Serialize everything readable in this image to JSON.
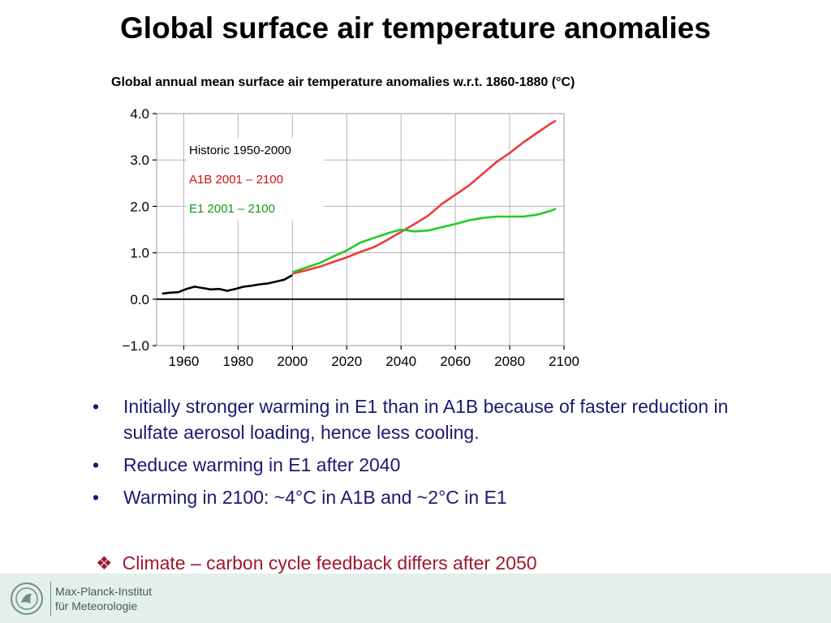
{
  "slide": {
    "title": "Global surface air temperature anomalies"
  },
  "chart_data": {
    "type": "line",
    "title": "Global annual mean surface air temperature anomalies w.r.t. 1860-1880 (°C)",
    "xlabel": "",
    "ylabel": "",
    "xlim": [
      1950,
      2100
    ],
    "ylim": [
      -1.0,
      4.0
    ],
    "x_ticks": [
      1960,
      1980,
      2000,
      2020,
      2040,
      2060,
      2080,
      2100
    ],
    "y_ticks": [
      -1.0,
      0.0,
      1.0,
      2.0,
      3.0,
      4.0
    ],
    "y_tick_labels": [
      "−1.0",
      "0.0",
      "1.0",
      "2.0",
      "3.0",
      "4.0"
    ],
    "grid": true,
    "legend_position": "top-left",
    "series": [
      {
        "name": "Historic 1950-2000",
        "color": "#000000",
        "x": [
          1952,
          1955,
          1958,
          1961,
          1964,
          1967,
          1970,
          1973,
          1976,
          1979,
          1982,
          1985,
          1988,
          1991,
          1994,
          1997,
          2000
        ],
        "y": [
          0.12,
          0.14,
          0.15,
          0.22,
          0.27,
          0.24,
          0.21,
          0.22,
          0.18,
          0.22,
          0.27,
          0.29,
          0.32,
          0.34,
          0.38,
          0.42,
          0.52
        ]
      },
      {
        "name": "A1B 2001 – 2100",
        "color": "#ef3a3a",
        "x": [
          2000,
          2005,
          2010,
          2015,
          2020,
          2025,
          2030,
          2035,
          2040,
          2045,
          2050,
          2055,
          2060,
          2065,
          2070,
          2075,
          2080,
          2085,
          2090,
          2095,
          2097
        ],
        "y": [
          0.55,
          0.62,
          0.7,
          0.8,
          0.9,
          1.02,
          1.12,
          1.28,
          1.45,
          1.62,
          1.8,
          2.05,
          2.25,
          2.45,
          2.7,
          2.95,
          3.15,
          3.38,
          3.58,
          3.78,
          3.85
        ]
      },
      {
        "name": "E1   2001 – 2100",
        "color": "#22cc22",
        "x": [
          2000,
          2005,
          2010,
          2015,
          2020,
          2025,
          2030,
          2035,
          2040,
          2045,
          2050,
          2055,
          2060,
          2065,
          2070,
          2075,
          2080,
          2085,
          2090,
          2095,
          2097
        ],
        "y": [
          0.58,
          0.68,
          0.78,
          0.92,
          1.05,
          1.22,
          1.32,
          1.42,
          1.5,
          1.46,
          1.48,
          1.55,
          1.62,
          1.7,
          1.75,
          1.78,
          1.78,
          1.78,
          1.82,
          1.9,
          1.95
        ]
      }
    ]
  },
  "bullets": [
    "Initially stronger warming in E1 than in A1B because of faster reduction in sulfate aerosol loading, hence less cooling.",
    "Reduce warming in E1 after 2040",
    "Warming in 2100: ~4°C in A1B and ~2°C in E1"
  ],
  "bullet_marker": "•",
  "highlight": {
    "marker": "❖",
    "text": "Climate – carbon cycle feedback differs after 2050"
  },
  "footer": {
    "line1": "Max-Planck-Institut",
    "line2": "für Meteorologie"
  }
}
